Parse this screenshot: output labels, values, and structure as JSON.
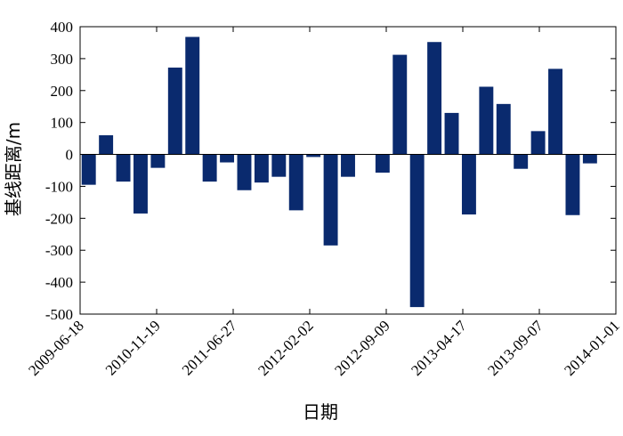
{
  "chart_data": {
    "type": "bar",
    "xlabel": "日期",
    "ylabel": "基线距离/m",
    "ylim": [
      -500,
      400
    ],
    "yticks": [
      400,
      300,
      200,
      100,
      0,
      -100,
      -200,
      -300,
      -400,
      -500
    ],
    "xtick_labels": [
      "2009-06-18",
      "2010-11-19",
      "2011-06-27",
      "2012-02-02",
      "2012-09-09",
      "2013-04-17",
      "2013-09-07",
      "2014-01-01"
    ],
    "grid": false,
    "legend": "none",
    "bar_color": "#0a2a6e",
    "values": [
      -95,
      60,
      -85,
      -185,
      -42,
      272,
      368,
      -85,
      -25,
      -112,
      -88,
      -70,
      -175,
      -8,
      -285,
      -70,
      0,
      -57,
      312,
      -478,
      352,
      130,
      -188,
      212,
      158,
      -45,
      73,
      268,
      -190,
      -28,
      0
    ]
  }
}
